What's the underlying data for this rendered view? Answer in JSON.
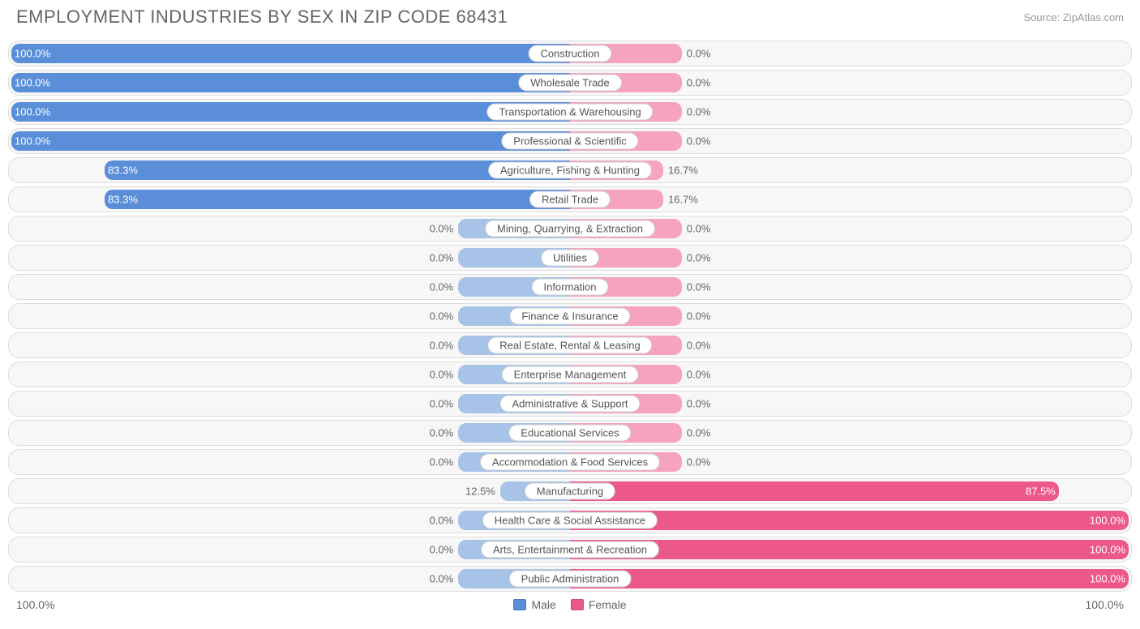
{
  "title": "EMPLOYMENT INDUSTRIES BY SEX IN ZIP CODE 68431",
  "source": "Source: ZipAtlas.com",
  "axis_left": "100.0%",
  "axis_right": "100.0%",
  "legend": {
    "male": "Male",
    "female": "Female"
  },
  "colors": {
    "male_strong": "#5a8ed8",
    "male_weak": "#a7c3e8",
    "female_strong": "#ec588b",
    "female_weak": "#f5a3bf",
    "row_bg": "#f7f7f7",
    "row_border": "#dddddd",
    "label_bg": "#ffffff",
    "label_border": "#cccccc",
    "title_color": "#666666",
    "text_color": "#666666"
  },
  "chart": {
    "type": "diverging-bar",
    "min_bar_pct": 20,
    "rows": [
      {
        "label": "Construction",
        "male": 100.0,
        "female": 0.0
      },
      {
        "label": "Wholesale Trade",
        "male": 100.0,
        "female": 0.0
      },
      {
        "label": "Transportation & Warehousing",
        "male": 100.0,
        "female": 0.0
      },
      {
        "label": "Professional & Scientific",
        "male": 100.0,
        "female": 0.0
      },
      {
        "label": "Agriculture, Fishing & Hunting",
        "male": 83.3,
        "female": 16.7
      },
      {
        "label": "Retail Trade",
        "male": 83.3,
        "female": 16.7
      },
      {
        "label": "Mining, Quarrying, & Extraction",
        "male": 0.0,
        "female": 0.0
      },
      {
        "label": "Utilities",
        "male": 0.0,
        "female": 0.0
      },
      {
        "label": "Information",
        "male": 0.0,
        "female": 0.0
      },
      {
        "label": "Finance & Insurance",
        "male": 0.0,
        "female": 0.0
      },
      {
        "label": "Real Estate, Rental & Leasing",
        "male": 0.0,
        "female": 0.0
      },
      {
        "label": "Enterprise Management",
        "male": 0.0,
        "female": 0.0
      },
      {
        "label": "Administrative & Support",
        "male": 0.0,
        "female": 0.0
      },
      {
        "label": "Educational Services",
        "male": 0.0,
        "female": 0.0
      },
      {
        "label": "Accommodation & Food Services",
        "male": 0.0,
        "female": 0.0
      },
      {
        "label": "Manufacturing",
        "male": 12.5,
        "female": 87.5
      },
      {
        "label": "Health Care & Social Assistance",
        "male": 0.0,
        "female": 100.0
      },
      {
        "label": "Arts, Entertainment & Recreation",
        "male": 0.0,
        "female": 100.0
      },
      {
        "label": "Public Administration",
        "male": 0.0,
        "female": 100.0
      }
    ]
  }
}
